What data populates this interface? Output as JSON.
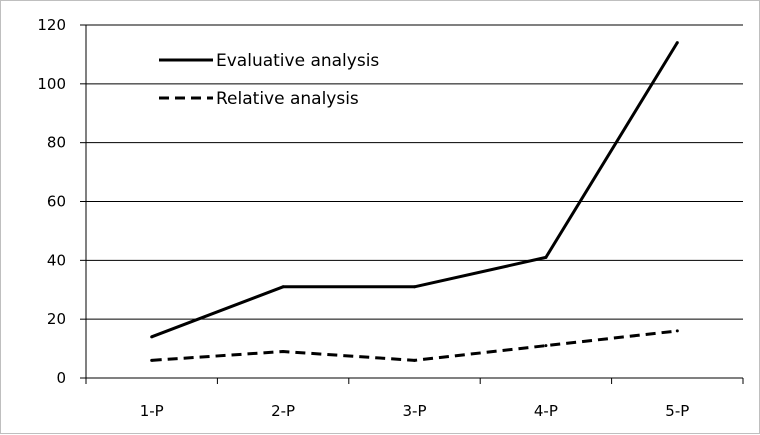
{
  "chart_data": {
    "type": "line",
    "title": "",
    "xlabel": "",
    "ylabel": "",
    "categories": [
      "1-P",
      "2-P",
      "3-P",
      "4-P",
      "5-P"
    ],
    "ylim": [
      0,
      120
    ],
    "yticks": [
      "0",
      "20",
      "40",
      "60",
      "80",
      "100",
      "120"
    ],
    "grid": "horizontal",
    "legend": "top-left",
    "series": [
      {
        "name": "Evaluative analysis",
        "style": "solid",
        "color": "#000000",
        "values": [
          14,
          31,
          31,
          41,
          114
        ]
      },
      {
        "name": "Relative analysis",
        "style": "dashed",
        "color": "#000000",
        "values": [
          6,
          9,
          6,
          11,
          16
        ]
      }
    ]
  }
}
